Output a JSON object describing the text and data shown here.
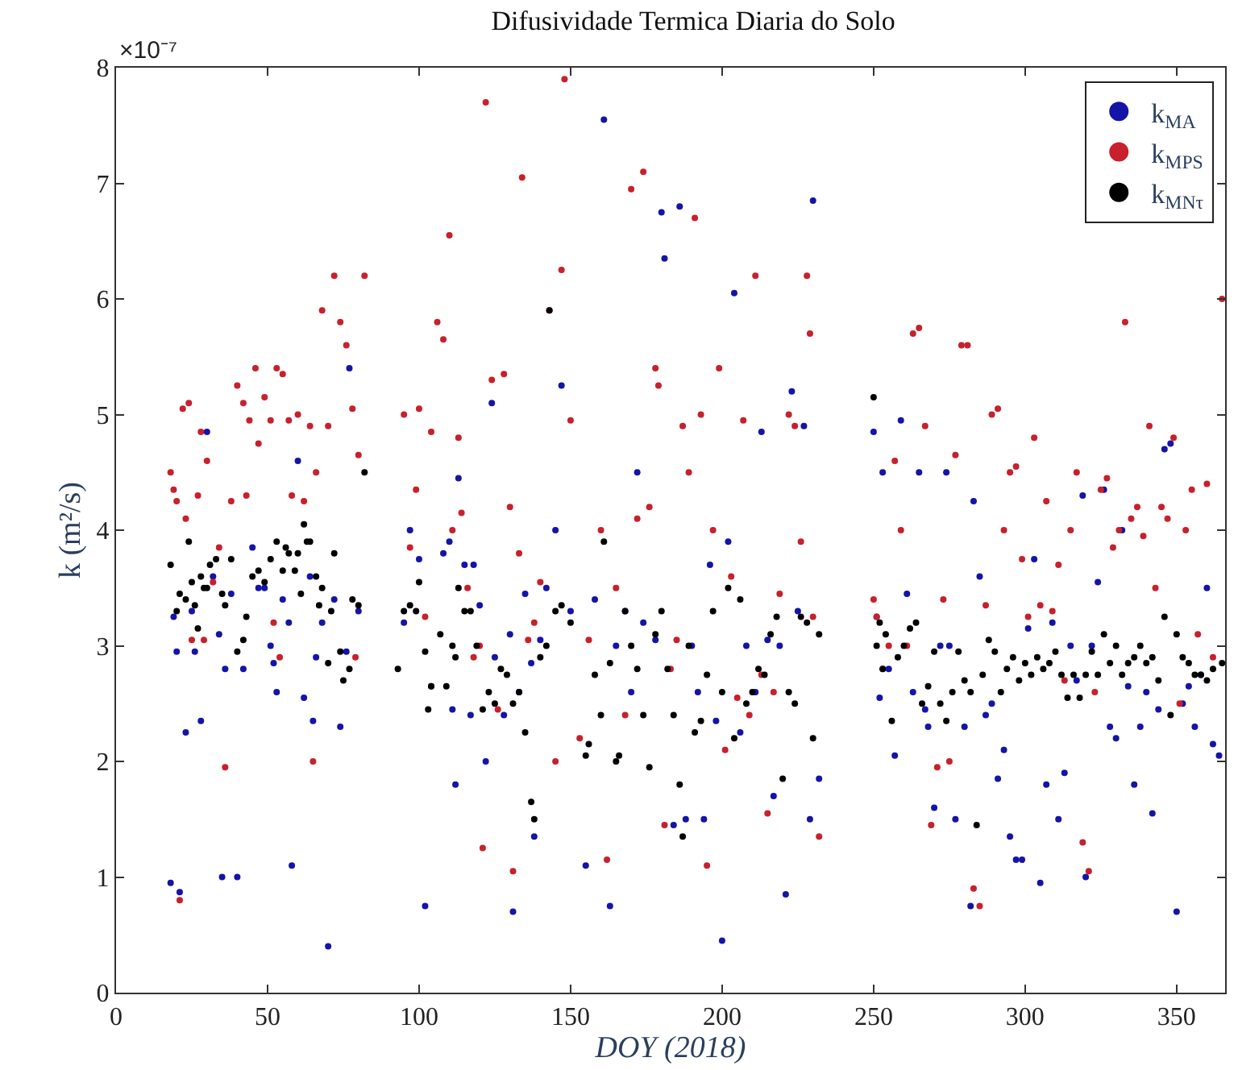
{
  "chart_data": {
    "type": "scatter",
    "title": "Difusividade Termica Diaria do Solo",
    "xlabel": "DOY (2018)",
    "ylabel": "k (m²/s)",
    "annotations": [
      "×10⁻⁷"
    ],
    "xlim": [
      0,
      366
    ],
    "xticks": [
      0,
      50,
      100,
      150,
      200,
      250,
      300,
      350
    ],
    "ylim": [
      0,
      8
    ],
    "yticks": [
      0,
      1,
      2,
      3,
      4,
      5,
      6,
      7,
      8
    ],
    "grid": false,
    "legend": "top right",
    "marker": "circle",
    "series": [
      {
        "name": "k$_{MA}$",
        "color": "#1414a8",
        "x": [
          18,
          19,
          20,
          21,
          23,
          25,
          26,
          28,
          30,
          32,
          34,
          35,
          36,
          38,
          40,
          42,
          45,
          47,
          49,
          51,
          52,
          53,
          55,
          57,
          58,
          60,
          62,
          64,
          65,
          66,
          68,
          70,
          72,
          74,
          76,
          77,
          80,
          95,
          97,
          100,
          102,
          104,
          108,
          110,
          111,
          112,
          113,
          115,
          117,
          118,
          120,
          122,
          124,
          125,
          128,
          130,
          131,
          133,
          135,
          137,
          138,
          140,
          142,
          145,
          147,
          150,
          155,
          158,
          161,
          163,
          165,
          168,
          170,
          172,
          174,
          178,
          180,
          181,
          184,
          186,
          188,
          190,
          192,
          194,
          196,
          198,
          200,
          202,
          204,
          206,
          208,
          211,
          213,
          215,
          217,
          219,
          221,
          223,
          225,
          227,
          229,
          230,
          232,
          250,
          251,
          252,
          253,
          255,
          257,
          259,
          261,
          263,
          265,
          267,
          268,
          270,
          272,
          274,
          275,
          277,
          280,
          282,
          283,
          285,
          287,
          289,
          291,
          293,
          295,
          297,
          299,
          301,
          303,
          305,
          307,
          309,
          311,
          313,
          315,
          317,
          319,
          320,
          322,
          324,
          326,
          328,
          330,
          332,
          334,
          336,
          338,
          340,
          342,
          344,
          346,
          348,
          350,
          352,
          354,
          356,
          358,
          360,
          362,
          364
        ],
        "values": [
          0.95,
          3.25,
          2.95,
          0.87,
          2.25,
          3.3,
          2.95,
          2.35,
          4.85,
          3.6,
          3.1,
          1.0,
          2.8,
          3.45,
          1.0,
          2.8,
          3.85,
          3.5,
          3.5,
          3.0,
          2.85,
          2.6,
          3.4,
          3.2,
          1.1,
          4.6,
          2.55,
          3.6,
          2.35,
          2.9,
          3.2,
          0.4,
          3.4,
          2.3,
          2.95,
          5.4,
          3.3,
          3.2,
          4.0,
          3.75,
          0.75,
          2.65,
          3.8,
          3.9,
          2.45,
          1.8,
          4.45,
          3.7,
          2.4,
          3.7,
          3.35,
          2.0,
          5.1,
          2.9,
          2.4,
          3.1,
          0.7,
          2.6,
          3.45,
          2.85,
          1.35,
          3.05,
          3.5,
          4.0,
          5.25,
          3.3,
          1.1,
          3.4,
          7.55,
          0.75,
          3.0,
          3.3,
          2.6,
          4.5,
          3.2,
          3.05,
          6.75,
          6.35,
          1.45,
          6.8,
          1.5,
          3.0,
          2.6,
          1.5,
          3.7,
          2.35,
          0.45,
          3.9,
          6.05,
          2.25,
          3.0,
          2.6,
          4.85,
          3.05,
          1.7,
          3.0,
          0.85,
          5.2,
          3.3,
          4.9,
          1.5,
          6.85,
          1.85,
          4.85,
          3.25,
          2.55,
          4.5,
          2.8,
          2.05,
          4.95,
          3.45,
          2.6,
          4.5,
          2.45,
          2.3,
          1.6,
          3.0,
          4.5,
          3.0,
          1.5,
          2.3,
          0.75,
          4.25,
          3.6,
          2.4,
          2.5,
          1.85,
          2.1,
          1.35,
          1.15,
          1.15,
          3.15,
          3.75,
          0.95,
          1.8,
          3.2,
          1.5,
          1.9,
          3.0,
          2.7,
          4.3,
          1.0,
          3.0,
          3.55,
          4.35,
          2.3,
          2.2,
          4.0,
          2.65,
          1.8,
          2.3,
          2.6,
          1.55,
          2.45,
          4.7,
          4.75,
          0.7,
          2.5,
          2.65,
          2.3,
          2.75,
          3.5,
          2.15,
          2.05
        ]
      },
      {
        "name": "k$_{MPS}$",
        "color": "#c8202c",
        "x": [
          18,
          19,
          20,
          21,
          22,
          23,
          24,
          25,
          27,
          28,
          29,
          30,
          32,
          34,
          36,
          38,
          40,
          42,
          43,
          44,
          46,
          47,
          49,
          51,
          52,
          53,
          54,
          55,
          57,
          58,
          60,
          62,
          64,
          65,
          66,
          68,
          70,
          72,
          74,
          76,
          78,
          79,
          80,
          82,
          95,
          97,
          99,
          100,
          102,
          104,
          106,
          108,
          110,
          111,
          113,
          114,
          116,
          118,
          120,
          121,
          122,
          124,
          126,
          128,
          130,
          131,
          133,
          134,
          136,
          138,
          140,
          143,
          145,
          147,
          148,
          150,
          153,
          156,
          160,
          162,
          165,
          168,
          170,
          172,
          174,
          176,
          178,
          179,
          181,
          183,
          185,
          187,
          189,
          191,
          193,
          195,
          197,
          199,
          201,
          203,
          205,
          207,
          209,
          211,
          213,
          215,
          217,
          219,
          222,
          224,
          226,
          228,
          229,
          230,
          232,
          250,
          251,
          253,
          255,
          257,
          259,
          261,
          263,
          265,
          267,
          269,
          271,
          273,
          275,
          277,
          279,
          281,
          283,
          285,
          287,
          289,
          291,
          293,
          295,
          297,
          299,
          301,
          303,
          305,
          307,
          309,
          311,
          313,
          315,
          317,
          319,
          321,
          323,
          325,
          327,
          329,
          331,
          333,
          335,
          337,
          339,
          341,
          343,
          345,
          347,
          349,
          351,
          353,
          355,
          357,
          360,
          362,
          365
        ],
        "values": [
          4.5,
          4.35,
          4.25,
          0.8,
          5.05,
          4.1,
          5.1,
          3.05,
          4.3,
          4.85,
          3.05,
          4.6,
          3.55,
          3.85,
          1.95,
          4.25,
          5.25,
          5.1,
          4.3,
          4.95,
          5.4,
          4.75,
          5.15,
          4.95,
          3.2,
          5.4,
          2.9,
          5.35,
          4.95,
          4.3,
          5.0,
          4.25,
          4.9,
          2.0,
          4.5,
          5.9,
          4.9,
          6.2,
          5.8,
          5.6,
          5.05,
          2.9,
          4.65,
          6.2,
          5.0,
          3.85,
          4.35,
          5.05,
          3.25,
          4.85,
          5.8,
          5.65,
          6.55,
          4.0,
          4.8,
          4.15,
          3.5,
          2.9,
          3.0,
          1.25,
          7.7,
          5.3,
          2.45,
          5.35,
          4.2,
          1.05,
          3.8,
          7.05,
          3.05,
          3.2,
          3.55,
          5.9,
          2.0,
          6.25,
          7.9,
          4.95,
          2.2,
          3.05,
          4.0,
          1.15,
          3.5,
          2.4,
          6.95,
          4.1,
          7.1,
          4.2,
          5.4,
          5.25,
          1.45,
          2.8,
          3.05,
          4.9,
          4.5,
          6.7,
          5.0,
          1.1,
          4.0,
          5.4,
          2.1,
          3.6,
          2.55,
          4.95,
          2.4,
          6.2,
          2.75,
          1.55,
          2.6,
          3.45,
          5.0,
          4.9,
          3.9,
          6.2,
          5.7,
          3.25,
          1.35,
          3.4,
          3.25,
          2.8,
          3.0,
          4.6,
          4.0,
          3.0,
          5.7,
          5.75,
          4.9,
          1.45,
          1.95,
          3.4,
          2.0,
          4.65,
          5.6,
          5.6,
          0.9,
          0.75,
          3.35,
          5.0,
          5.05,
          4.0,
          4.5,
          4.55,
          3.75,
          3.25,
          4.8,
          3.35,
          4.25,
          3.3,
          3.7,
          2.7,
          4.0,
          4.5,
          1.3,
          1.05,
          2.6,
          4.35,
          4.45,
          3.85,
          4.0,
          5.8,
          4.1,
          4.2,
          3.95,
          4.9,
          3.5,
          4.2,
          4.1,
          4.8,
          2.5,
          4.0,
          4.35,
          3.1,
          4.4,
          2.9,
          6.0
        ]
      },
      {
        "name": "k$_{MNτ}$",
        "color": "#000000",
        "x": [
          18,
          20,
          21,
          23,
          24,
          25,
          26,
          27,
          28,
          29,
          30,
          31,
          33,
          35,
          36,
          38,
          40,
          42,
          43,
          45,
          47,
          49,
          51,
          53,
          55,
          56,
          57,
          59,
          60,
          61,
          62,
          63,
          64,
          66,
          67,
          68,
          70,
          71,
          72,
          74,
          75,
          77,
          78,
          80,
          82,
          93,
          95,
          97,
          99,
          100,
          102,
          103,
          104,
          107,
          109,
          111,
          112,
          113,
          115,
          117,
          119,
          121,
          123,
          125,
          127,
          129,
          131,
          133,
          135,
          137,
          138,
          140,
          142,
          143,
          145,
          147,
          150,
          155,
          156,
          158,
          160,
          161,
          163,
          165,
          166,
          168,
          170,
          172,
          174,
          176,
          178,
          180,
          182,
          184,
          186,
          187,
          189,
          191,
          193,
          195,
          197,
          200,
          202,
          204,
          206,
          208,
          210,
          212,
          214,
          216,
          218,
          220,
          222,
          224,
          226,
          228,
          230,
          232,
          250,
          251,
          252,
          253,
          254,
          256,
          258,
          260,
          262,
          264,
          266,
          268,
          270,
          272,
          274,
          276,
          278,
          280,
          282,
          284,
          286,
          288,
          290,
          292,
          294,
          296,
          298,
          300,
          302,
          304,
          306,
          308,
          310,
          312,
          314,
          316,
          318,
          320,
          322,
          324,
          326,
          328,
          330,
          332,
          334,
          336,
          338,
          340,
          342,
          344,
          346,
          348,
          350,
          352,
          354,
          356,
          358,
          360,
          362,
          365
        ],
        "values": [
          3.7,
          3.3,
          3.45,
          3.4,
          3.9,
          3.55,
          3.35,
          3.15,
          3.6,
          3.5,
          3.5,
          3.7,
          3.75,
          3.45,
          3.35,
          3.75,
          2.95,
          3.05,
          3.25,
          3.6,
          3.65,
          3.55,
          3.75,
          3.9,
          3.65,
          3.85,
          3.8,
          3.65,
          3.8,
          3.45,
          4.05,
          3.9,
          3.9,
          3.6,
          3.35,
          3.5,
          2.85,
          3.3,
          3.8,
          2.95,
          2.7,
          2.8,
          3.4,
          3.35,
          4.5,
          2.8,
          3.3,
          3.35,
          3.3,
          3.55,
          2.95,
          2.45,
          2.65,
          3.1,
          2.65,
          3.0,
          2.9,
          3.5,
          3.3,
          3.3,
          3.0,
          2.45,
          2.6,
          2.5,
          2.8,
          2.75,
          2.5,
          2.6,
          2.25,
          1.65,
          1.5,
          2.9,
          3.0,
          5.9,
          3.3,
          3.35,
          3.2,
          2.05,
          2.15,
          2.75,
          2.4,
          3.9,
          2.85,
          2.0,
          2.05,
          3.3,
          3.0,
          2.8,
          2.4,
          1.95,
          3.1,
          3.3,
          2.8,
          2.4,
          1.8,
          1.35,
          3.0,
          2.25,
          2.35,
          2.75,
          3.3,
          2.6,
          3.5,
          2.2,
          3.4,
          2.5,
          2.6,
          2.8,
          2.75,
          3.1,
          3.25,
          1.85,
          2.6,
          2.5,
          3.25,
          3.2,
          2.2,
          3.1,
          5.15,
          3.0,
          3.2,
          2.8,
          3.1,
          2.35,
          2.9,
          3.0,
          3.15,
          3.2,
          2.5,
          2.65,
          2.95,
          2.5,
          2.35,
          2.6,
          2.95,
          2.7,
          2.6,
          1.45,
          2.75,
          3.05,
          2.95,
          2.6,
          2.8,
          2.9,
          2.7,
          2.85,
          2.75,
          2.9,
          2.8,
          2.85,
          2.95,
          2.75,
          2.55,
          2.75,
          2.55,
          2.75,
          2.95,
          2.75,
          3.1,
          2.85,
          3.0,
          2.75,
          2.85,
          2.9,
          3.0,
          2.85,
          2.9,
          2.7,
          3.25,
          2.4,
          3.1,
          2.9,
          2.85,
          2.75,
          2.75,
          2.7,
          2.8,
          2.85
        ]
      }
    ]
  }
}
